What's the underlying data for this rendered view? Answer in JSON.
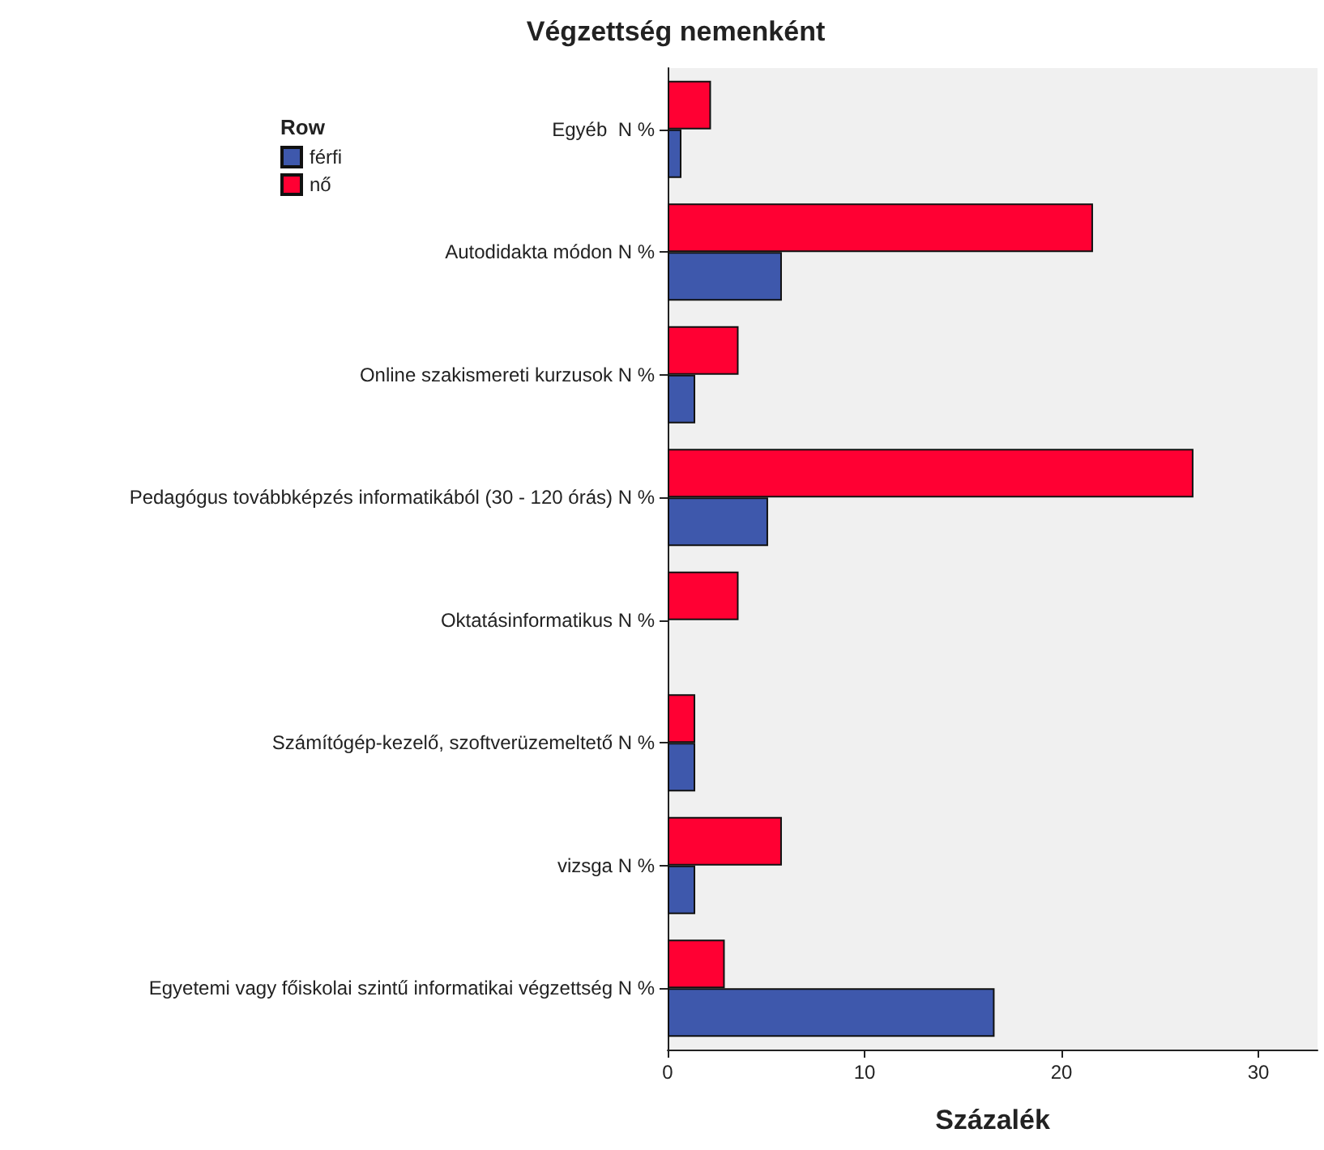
{
  "chart_data": {
    "type": "bar",
    "orientation": "horizontal",
    "title": "Végzettség nemenként",
    "xlabel": "Százalék",
    "legend_title": "Row",
    "legend": "top left",
    "grid": false,
    "categories": [
      "Egyéb  N %",
      "Autodidakta módon N %",
      "Online szakismereti kurzusok N %",
      "Pedagógus továbbképzés informatikából (30 - 120 órás) N %",
      "Oktatásinformatikus N %",
      "Számítógép-kezelő, szoftverüzemeltető N %",
      "vizsga N %",
      "Egyetemi vagy főiskolai szintű informatikai végzettség N %"
    ],
    "series": [
      {
        "name": "férfi",
        "color": "#3e58ac",
        "values": [
          0.7,
          5.8,
          1.4,
          5.1,
          0,
          1.4,
          1.4,
          16.6
        ]
      },
      {
        "name": "nő",
        "color": "#ff0033",
        "values": [
          2.2,
          21.6,
          3.6,
          26.7,
          3.6,
          1.4,
          5.8,
          2.9
        ]
      }
    ],
    "xlim": [
      0,
      33
    ],
    "xticks": [
      0,
      10,
      20,
      30
    ]
  }
}
